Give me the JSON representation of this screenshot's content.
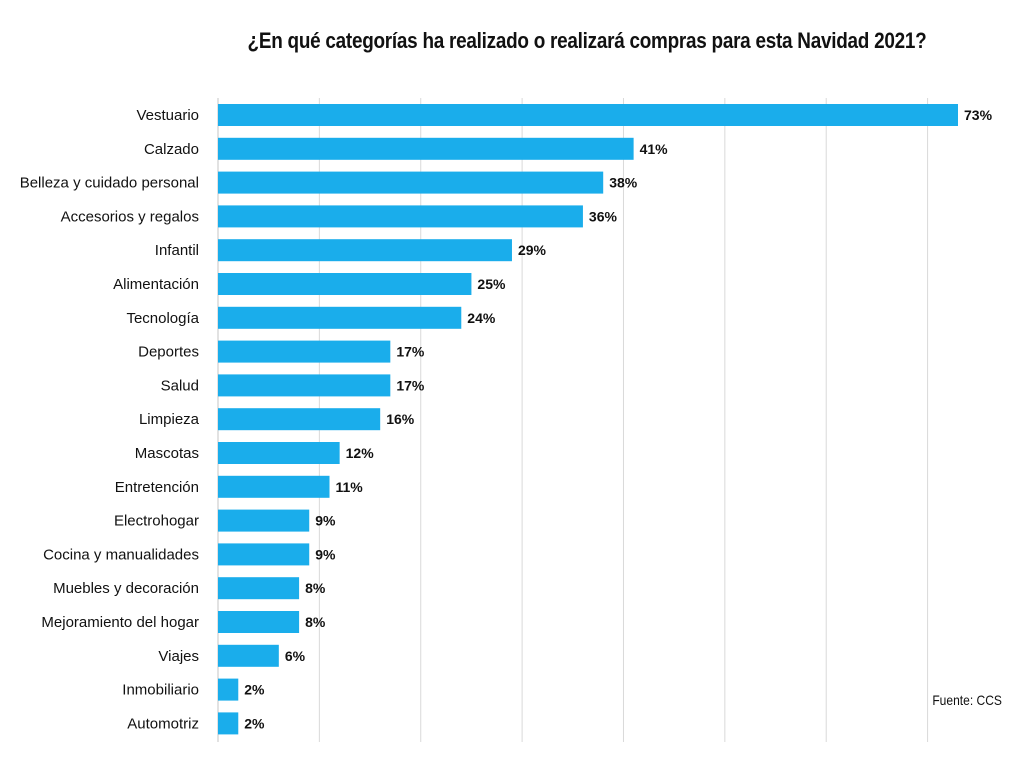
{
  "chart_data": {
    "type": "bar",
    "orientation": "horizontal",
    "title": "¿En qué categorías ha realizado o realizará compras para esta Navidad 2021?",
    "categories": [
      "Vestuario",
      "Calzado",
      "Belleza y cuidado personal",
      "Accesorios y regalos",
      "Infantil",
      "Alimentación",
      "Tecnología",
      "Deportes",
      "Salud",
      "Limpieza",
      "Mascotas",
      "Entretención",
      "Electrohogar",
      "Cocina y manualidades",
      "Muebles y decoración",
      "Mejoramiento del hogar",
      "Viajes",
      "Inmobiliario",
      "Automotriz"
    ],
    "values": [
      73,
      41,
      38,
      36,
      29,
      25,
      24,
      17,
      17,
      16,
      12,
      11,
      9,
      9,
      8,
      8,
      6,
      2,
      2
    ],
    "value_labels": [
      "73%",
      "41%",
      "38%",
      "36%",
      "29%",
      "25%",
      "24%",
      "17%",
      "17%",
      "16%",
      "12%",
      "11%",
      "9%",
      "9%",
      "8%",
      "8%",
      "6%",
      "2%",
      "2%"
    ],
    "xlim": [
      0,
      73
    ],
    "grid": true,
    "bar_color": "#1AADEB",
    "grid_color": "#d9d9d9"
  },
  "source": "Fuente: CCS"
}
